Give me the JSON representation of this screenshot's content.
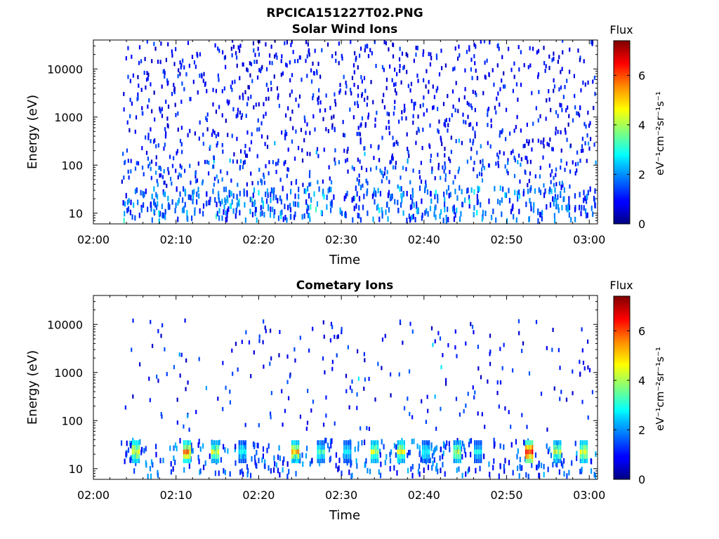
{
  "page": {
    "filename": "RPCICA151227T02.PNG"
  },
  "colors": {
    "colormap": "jet",
    "axis": "#000000",
    "background": "#ffffff"
  },
  "chart_data": [
    {
      "type": "heatmap",
      "title": "Solar Wind Ions",
      "xlabel": "Time",
      "ylabel": "Energy (eV)",
      "y_scale": "log",
      "ylim": [
        6,
        40000
      ],
      "x_range_minutes": [
        0,
        61
      ],
      "x_ticks": [
        "02:00",
        "02:10",
        "02:20",
        "02:30",
        "02:40",
        "02:50",
        "03:00"
      ],
      "y_ticks": [
        "10",
        "100",
        "1000",
        "10000"
      ],
      "grid": false,
      "colorbar": {
        "label": "Flux",
        "units": "eV⁻¹cm⁻²sr⁻¹s⁻¹",
        "range": [
          0,
          7.4
        ],
        "ticks": [
          "0",
          "2",
          "4",
          "6"
        ]
      },
      "description_of_pattern": "sparse low-flux (flux ~0.5-1.5) pixels scattered across 100-30000 eV; denser low-energy (6-30 eV) pixels with flux up to ~3",
      "sample_cells": [
        {
          "t": 4.0,
          "e": 10,
          "flux": 1.2
        },
        {
          "t": 5.0,
          "e": 25,
          "flux": 1.8
        },
        {
          "t": 9.0,
          "e": 13,
          "flux": 1.5
        },
        {
          "t": 11.0,
          "e": 25,
          "flux": 2.2
        },
        {
          "t": 13.6,
          "e": 22,
          "flux": 1.0
        },
        {
          "t": 17.2,
          "e": 10,
          "flux": 1.4
        },
        {
          "t": 22.5,
          "e": 18,
          "flux": 1.6
        },
        {
          "t": 27.5,
          "e": 9,
          "flux": 2.5
        },
        {
          "t": 36.8,
          "e": 10,
          "flux": 1.3
        },
        {
          "t": 46.3,
          "e": 9,
          "flux": 2.8
        },
        {
          "t": 52.5,
          "e": 25,
          "flux": 1.9
        },
        {
          "t": 55.9,
          "e": 12,
          "flux": 1.7
        }
      ]
    },
    {
      "type": "heatmap",
      "title": "Cometary Ions",
      "xlabel": "Time",
      "ylabel": "Energy (eV)",
      "y_scale": "log",
      "ylim": [
        6,
        40000
      ],
      "x_range_minutes": [
        0,
        61
      ],
      "x_ticks": [
        "02:00",
        "02:10",
        "02:20",
        "02:30",
        "02:40",
        "02:50",
        "03:00"
      ],
      "y_ticks": [
        "10",
        "100",
        "1000",
        "10000"
      ],
      "grid": false,
      "colorbar": {
        "label": "Flux",
        "units": "eV⁻¹cm⁻²sr⁻¹s⁻¹",
        "range": [
          0,
          7.4
        ],
        "ticks": [
          "0",
          "2",
          "4",
          "6"
        ]
      },
      "description_of_pattern": "periodic bursts (~3.3 min spacing) of cometary ions at 12-35 eV with flux 3-7.2; sparse low-flux pixels at higher energies",
      "burst_times_minutes": [
        5.0,
        11.2,
        14.6,
        17.9,
        24.3,
        27.4,
        30.6,
        33.9,
        37.1,
        40.1,
        43.9,
        46.4,
        52.6,
        56.0,
        59.2
      ],
      "burst_peak_flux": [
        5.2,
        5.8,
        4.9,
        3.2,
        5.5,
        3.6,
        3.0,
        4.7,
        5.0,
        3.3,
        4.5,
        3.0,
        7.2,
        4.6,
        5.0
      ]
    }
  ]
}
